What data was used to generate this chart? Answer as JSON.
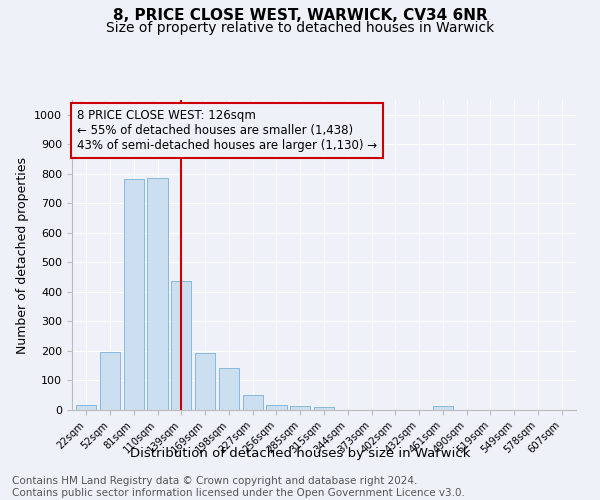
{
  "title1": "8, PRICE CLOSE WEST, WARWICK, CV34 6NR",
  "title2": "Size of property relative to detached houses in Warwick",
  "xlabel": "Distribution of detached houses by size in Warwick",
  "ylabel": "Number of detached properties",
  "bar_labels": [
    "22sqm",
    "52sqm",
    "81sqm",
    "110sqm",
    "139sqm",
    "169sqm",
    "198sqm",
    "227sqm",
    "256sqm",
    "285sqm",
    "315sqm",
    "344sqm",
    "373sqm",
    "402sqm",
    "432sqm",
    "461sqm",
    "490sqm",
    "519sqm",
    "549sqm",
    "578sqm",
    "607sqm"
  ],
  "bar_values": [
    18,
    197,
    782,
    787,
    436,
    193,
    142,
    50,
    18,
    12,
    10,
    0,
    0,
    0,
    0,
    12,
    0,
    0,
    0,
    0,
    0
  ],
  "bar_color": "#ccdff0",
  "bar_edge_color": "#7ab0d4",
  "vline_x": 4,
  "vline_color": "#cc0000",
  "annotation_text": "8 PRICE CLOSE WEST: 126sqm\n← 55% of detached houses are smaller (1,438)\n43% of semi-detached houses are larger (1,130) →",
  "annotation_box_edge": "#cc0000",
  "ylim": [
    0,
    1050
  ],
  "yticks": [
    0,
    100,
    200,
    300,
    400,
    500,
    600,
    700,
    800,
    900,
    1000
  ],
  "footer_text": "Contains HM Land Registry data © Crown copyright and database right 2024.\nContains public sector information licensed under the Open Government Licence v3.0.",
  "bg_color": "#eef2f8",
  "grid_color": "#ffffff",
  "title1_fontsize": 11,
  "title2_fontsize": 10,
  "xlabel_fontsize": 9.5,
  "ylabel_fontsize": 9,
  "footer_fontsize": 7.5,
  "annot_fontsize": 8.5
}
